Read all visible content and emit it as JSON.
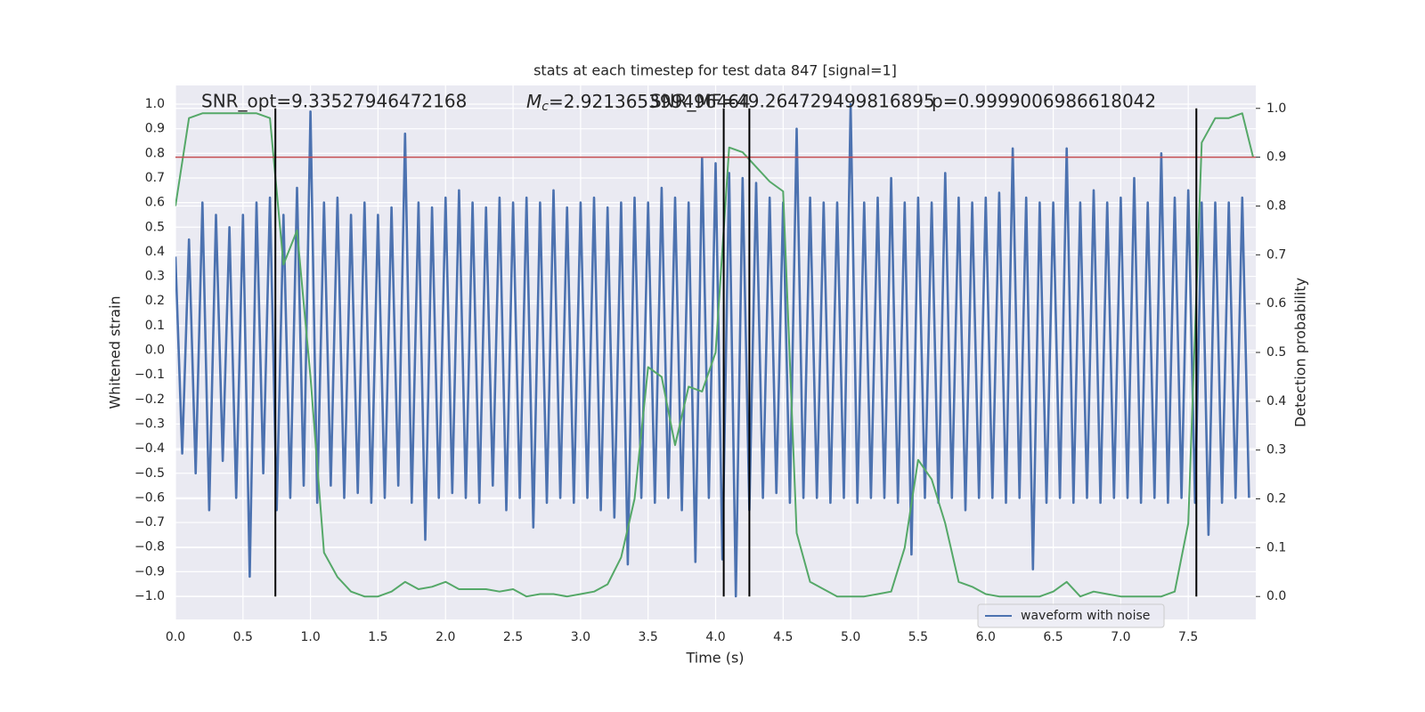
{
  "chart_data": {
    "type": "line",
    "title": "stats at each timestep for test data 847 [signal=1]",
    "xlabel": "Time (s)",
    "ylabel": "Whitened strain",
    "y2label": "Detection probability",
    "annotations": [
      "SNR_opt=9.33527946472168",
      {
        "symbol": "M",
        "sub": "c",
        "text": "=2.921365399496464"
      },
      "SNR_MF=49.264729499816895",
      "p=0.9999006986618042"
    ],
    "xlim": [
      0,
      8
    ],
    "xticks": [
      {
        "value": 0,
        "label": "0.0"
      },
      0.5,
      {
        "value": 1,
        "label": "1.0"
      },
      1.5,
      {
        "value": 2,
        "label": "2.0"
      },
      2.5,
      {
        "value": 3,
        "label": "3.0"
      },
      3.5,
      {
        "value": 4,
        "label": "4.0"
      },
      4.5,
      {
        "value": 5,
        "label": "5.0"
      },
      5.5,
      {
        "value": 6,
        "label": "6.0"
      },
      6.5,
      {
        "value": 7,
        "label": "7.0"
      },
      7.5
    ],
    "ylim": [
      -1.094,
      1.076
    ],
    "yticks": [
      {
        "value": -1,
        "label": "−1.0"
      },
      {
        "value": -0.9,
        "label": "−0.9"
      },
      {
        "value": -0.8,
        "label": "−0.8"
      },
      {
        "value": -0.7,
        "label": "−0.7"
      },
      {
        "value": -0.6,
        "label": "−0.6"
      },
      {
        "value": -0.5,
        "label": "−0.5"
      },
      {
        "value": -0.4,
        "label": "−0.4"
      },
      {
        "value": -0.3,
        "label": "−0.3"
      },
      {
        "value": -0.2,
        "label": "−0.2"
      },
      {
        "value": -0.1,
        "label": "−0.1"
      },
      {
        "value": 0,
        "label": "0.0"
      },
      0.1,
      0.2,
      0.3,
      0.4,
      0.5,
      0.6,
      0.7,
      0.8,
      0.9,
      {
        "value": 1,
        "label": "1.0"
      }
    ],
    "y2lim": [
      -0.047,
      1.047
    ],
    "y2ticks": [
      {
        "value": 0,
        "label": "0.0"
      },
      0.1,
      0.2,
      0.3,
      0.4,
      0.5,
      0.6,
      0.7,
      0.8,
      0.9,
      {
        "value": 1,
        "label": "1.0"
      }
    ],
    "grid": true,
    "legend": "lower right",
    "series": [
      {
        "name": "waveform with noise",
        "color": "#4c72b0",
        "x": [
          0,
          0.05,
          0.1,
          0.15,
          0.2,
          0.25,
          0.3,
          0.35,
          0.4,
          0.45,
          0.5,
          0.55,
          0.6,
          0.65,
          0.7,
          0.75,
          0.8,
          0.85,
          0.9,
          0.95,
          1,
          1.05,
          1.1,
          1.15,
          1.2,
          1.25,
          1.3,
          1.35,
          1.4,
          1.45,
          1.5,
          1.55,
          1.6,
          1.65,
          1.7,
          1.75,
          1.8,
          1.85,
          1.9,
          1.95,
          2,
          2.05,
          2.1,
          2.15,
          2.2,
          2.25,
          2.3,
          2.35,
          2.4,
          2.45,
          2.5,
          2.55,
          2.6,
          2.65,
          2.7,
          2.75,
          2.8,
          2.85,
          2.9,
          2.95,
          3,
          3.05,
          3.1,
          3.15,
          3.2,
          3.25,
          3.3,
          3.35,
          3.4,
          3.45,
          3.5,
          3.55,
          3.6,
          3.65,
          3.7,
          3.75,
          3.8,
          3.85,
          3.9,
          3.95,
          4,
          4.05,
          4.1,
          4.15,
          4.2,
          4.25,
          4.3,
          4.35,
          4.4,
          4.45,
          4.5,
          4.55,
          4.6,
          4.65,
          4.7,
          4.75,
          4.8,
          4.85,
          4.9,
          4.95,
          5,
          5.05,
          5.1,
          5.15,
          5.2,
          5.25,
          5.3,
          5.35,
          5.4,
          5.45,
          5.5,
          5.55,
          5.6,
          5.65,
          5.7,
          5.75,
          5.8,
          5.85,
          5.9,
          5.95,
          6,
          6.05,
          6.1,
          6.15,
          6.2,
          6.25,
          6.3,
          6.35,
          6.4,
          6.45,
          6.5,
          6.55,
          6.6,
          6.65,
          6.7,
          6.75,
          6.8,
          6.85,
          6.9,
          6.95,
          7,
          7.05,
          7.1,
          7.15,
          7.2,
          7.25,
          7.3,
          7.35,
          7.4,
          7.45,
          7.5,
          7.55,
          7.6,
          7.65,
          7.7,
          7.75,
          7.8,
          7.85,
          7.9,
          7.95
        ],
        "values": [
          0.38,
          -0.42,
          0.45,
          -0.5,
          0.6,
          -0.65,
          0.55,
          -0.45,
          0.5,
          -0.6,
          0.55,
          -0.92,
          0.6,
          -0.5,
          0.62,
          -0.65,
          0.55,
          -0.6,
          0.66,
          -0.55,
          0.97,
          -0.62,
          0.6,
          -0.55,
          0.62,
          -0.6,
          0.55,
          -0.58,
          0.6,
          -0.62,
          0.55,
          -0.6,
          0.58,
          -0.55,
          0.88,
          -0.62,
          0.6,
          -0.77,
          0.58,
          -0.6,
          0.62,
          -0.58,
          0.65,
          -0.6,
          0.6,
          -0.62,
          0.58,
          -0.55,
          0.62,
          -0.65,
          0.6,
          -0.6,
          0.62,
          -0.72,
          0.6,
          -0.62,
          0.65,
          -0.6,
          0.58,
          -0.62,
          0.6,
          -0.6,
          0.62,
          -0.65,
          0.58,
          -0.68,
          0.6,
          -0.87,
          0.62,
          -0.6,
          0.6,
          -0.62,
          0.66,
          -0.6,
          0.62,
          -0.65,
          0.6,
          -0.86,
          0.78,
          -0.6,
          0.76,
          -0.85,
          0.72,
          -1.0,
          0.7,
          -0.65,
          0.68,
          -0.6,
          0.62,
          -0.58,
          0.6,
          -0.62,
          0.9,
          -0.6,
          0.62,
          -0.6,
          0.6,
          -0.62,
          0.6,
          -0.6,
          1.0,
          -0.62,
          0.6,
          -0.6,
          0.62,
          -0.6,
          0.7,
          -0.62,
          0.6,
          -0.83,
          0.62,
          -0.6,
          0.6,
          -0.62,
          0.72,
          -0.6,
          0.62,
          -0.65,
          0.6,
          -0.6,
          0.62,
          -0.6,
          0.64,
          -0.62,
          0.82,
          -0.6,
          0.62,
          -0.89,
          0.6,
          -0.62,
          0.6,
          -0.6,
          0.82,
          -0.62,
          0.6,
          -0.6,
          0.65,
          -0.62,
          0.6,
          -0.6,
          0.62,
          -0.6,
          0.7,
          -0.62,
          0.6,
          -0.6,
          0.8,
          -0.62,
          0.62,
          -0.6,
          0.65,
          -0.62,
          0.6,
          -0.75,
          0.6,
          -0.62,
          0.6,
          -0.6,
          0.62,
          -0.6
        ]
      },
      {
        "color": "#55a868",
        "axis": "y2",
        "x": [
          0,
          0.1,
          0.2,
          0.3,
          0.4,
          0.5,
          0.6,
          0.7,
          0.8,
          0.9,
          1,
          1.1,
          1.2,
          1.3,
          1.4,
          1.5,
          1.6,
          1.7,
          1.8,
          1.9,
          2,
          2.1,
          2.2,
          2.3,
          2.4,
          2.5,
          2.6,
          2.7,
          2.8,
          2.9,
          3,
          3.1,
          3.2,
          3.3,
          3.4,
          3.5,
          3.6,
          3.7,
          3.8,
          3.9,
          4,
          4.1,
          4.2,
          4.3,
          4.4,
          4.5,
          4.6,
          4.7,
          4.8,
          4.9,
          5,
          5.1,
          5.2,
          5.3,
          5.4,
          5.5,
          5.6,
          5.7,
          5.8,
          5.9,
          6,
          6.1,
          6.2,
          6.3,
          6.4,
          6.5,
          6.6,
          6.7,
          6.8,
          6.9,
          7,
          7.1,
          7.2,
          7.3,
          7.4,
          7.5,
          7.6,
          7.7,
          7.8,
          7.9,
          7.98
        ],
        "values": [
          0.8,
          0.98,
          0.99,
          0.99,
          0.99,
          0.99,
          0.99,
          0.98,
          0.68,
          0.75,
          0.45,
          0.09,
          0.04,
          0.01,
          0,
          0,
          0.01,
          0.03,
          0.015,
          0.02,
          0.03,
          0.015,
          0.015,
          0.015,
          0.01,
          0.015,
          0,
          0.005,
          0.005,
          0,
          0.005,
          0.01,
          0.025,
          0.08,
          0.2,
          0.47,
          0.45,
          0.31,
          0.43,
          0.42,
          0.5,
          0.92,
          0.91,
          0.88,
          0.85,
          0.83,
          0.13,
          0.03,
          0.015,
          0,
          0,
          0,
          0.005,
          0.01,
          0.1,
          0.28,
          0.24,
          0.15,
          0.03,
          0.02,
          0.005,
          0,
          0,
          0,
          0,
          0.01,
          0.03,
          0,
          0.01,
          0.005,
          0,
          0,
          0,
          0,
          0.01,
          0.15,
          0.93,
          0.98,
          0.98,
          0.99,
          0.9
        ]
      }
    ],
    "hlines": [
      {
        "value": 0.9,
        "axis": "y2",
        "color": "#c44e52"
      }
    ],
    "vlines": {
      "x": [
        0.74,
        4.06,
        4.25,
        7.56
      ],
      "y2range": [
        0,
        1
      ],
      "color": "#000000"
    }
  }
}
